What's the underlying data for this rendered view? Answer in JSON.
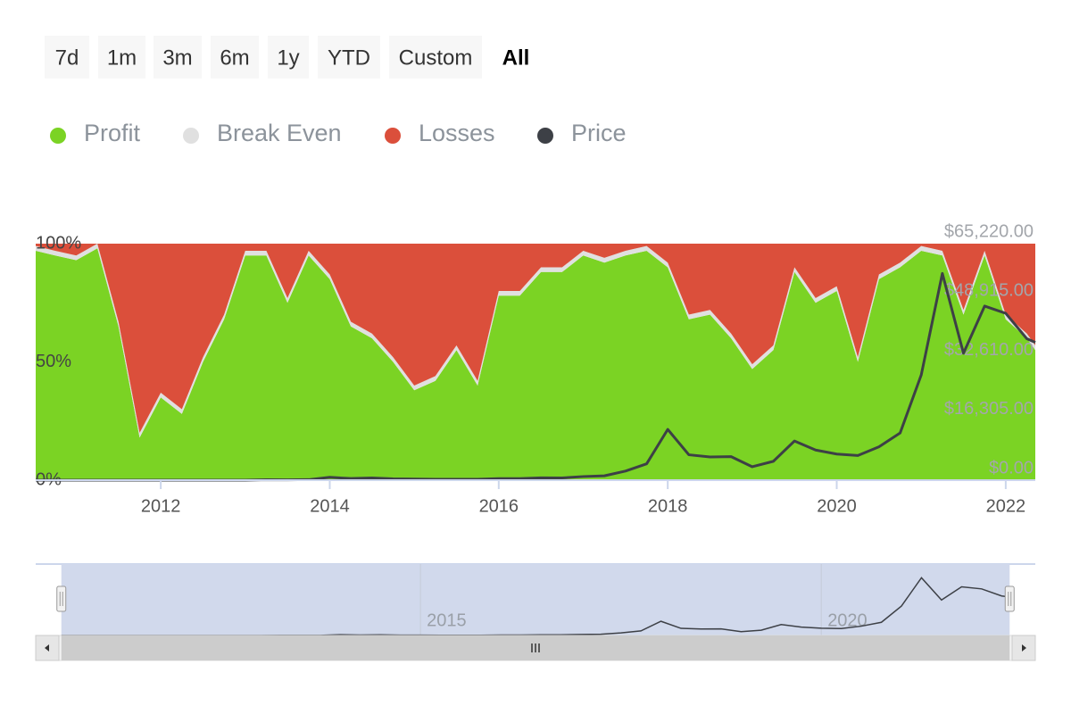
{
  "range_selector": {
    "buttons": [
      "7d",
      "1m",
      "3m",
      "6m",
      "1y",
      "YTD",
      "Custom",
      "All"
    ],
    "selected": "All"
  },
  "chart_data": {
    "type": "stacked-area-line",
    "x": [
      2010.52,
      2010.75,
      2011.0,
      2011.25,
      2011.5,
      2011.75,
      2012.0,
      2012.25,
      2012.5,
      2012.75,
      2013.0,
      2013.25,
      2013.5,
      2013.75,
      2014.0,
      2014.25,
      2014.5,
      2014.75,
      2015.0,
      2015.25,
      2015.5,
      2015.75,
      2016.0,
      2016.25,
      2016.5,
      2016.75,
      2017.0,
      2017.25,
      2017.5,
      2017.75,
      2018.0,
      2018.25,
      2018.5,
      2018.75,
      2019.0,
      2019.25,
      2019.5,
      2019.75,
      2020.0,
      2020.25,
      2020.5,
      2020.75,
      2021.0,
      2021.25,
      2021.5,
      2021.75,
      2022.0,
      2022.25,
      2022.35
    ],
    "series": [
      {
        "name": "Profit",
        "color": "#7bd324",
        "values": [
          97,
          95,
          93,
          98,
          65,
          18,
          35,
          28,
          50,
          68,
          95,
          95,
          75,
          95,
          85,
          65,
          60,
          50,
          38,
          42,
          55,
          40,
          78,
          78,
          88,
          88,
          95,
          92,
          95,
          97,
          90,
          68,
          70,
          60,
          47,
          55,
          88,
          75,
          80,
          50,
          85,
          90,
          97,
          95,
          70,
          95,
          68,
          60,
          55
        ]
      },
      {
        "name": "Break Even",
        "color": "#e0e0e0",
        "values": [
          2,
          2,
          2,
          2,
          2,
          2,
          2,
          2,
          2,
          2,
          2,
          2,
          2,
          2,
          2,
          2,
          2,
          2,
          2,
          2,
          2,
          2,
          2,
          2,
          2,
          2,
          2,
          2,
          2,
          2,
          2,
          2,
          2,
          2,
          2,
          2,
          2,
          2,
          2,
          2,
          2,
          2,
          2,
          2,
          2,
          2,
          2,
          2,
          2
        ]
      },
      {
        "name": "Losses",
        "color": "#db4f3b",
        "values": [
          1,
          3,
          5,
          0,
          33,
          80,
          63,
          70,
          48,
          30,
          3,
          3,
          23,
          3,
          13,
          33,
          38,
          48,
          60,
          56,
          43,
          58,
          20,
          20,
          10,
          10,
          3,
          6,
          3,
          1,
          8,
          30,
          28,
          38,
          51,
          43,
          10,
          23,
          18,
          48,
          13,
          8,
          1,
          3,
          28,
          3,
          30,
          38,
          43
        ]
      },
      {
        "name": "Price",
        "color": "#3d4046",
        "axis": "y2",
        "values": [
          0.1,
          0.2,
          0.3,
          0.8,
          15,
          4,
          5,
          5,
          7,
          12,
          13,
          130,
          90,
          140,
          800,
          450,
          620,
          380,
          310,
          240,
          260,
          240,
          430,
          420,
          650,
          610,
          1000,
          1200,
          2500,
          4500,
          14000,
          7000,
          6400,
          6500,
          3700,
          5200,
          10800,
          8300,
          7200,
          6800,
          9200,
          13000,
          29000,
          57000,
          35000,
          48000,
          46000,
          39000,
          38000
        ]
      }
    ],
    "xlim": [
      2010.52,
      2022.35
    ],
    "xticks": [
      2012,
      2014,
      2016,
      2018,
      2020,
      2022
    ],
    "ylim": [
      0,
      100
    ],
    "yticks": [
      {
        "value": 0,
        "label": "0%"
      },
      {
        "value": 50,
        "label": "50%"
      },
      {
        "value": 100,
        "label": "100%"
      }
    ],
    "y2lim": [
      0,
      65220
    ],
    "y2ticks": [
      {
        "value": 0,
        "label": "$0.00"
      },
      {
        "value": 16305,
        "label": "$16,305.00"
      },
      {
        "value": 32610,
        "label": "$32,610.00"
      },
      {
        "value": 48915,
        "label": "$48,915.00"
      },
      {
        "value": 65220,
        "label": "$65,220.00"
      }
    ],
    "navigator": {
      "xlim": [
        2010.2,
        2022.67
      ],
      "xticks": [
        2015,
        2020
      ]
    }
  }
}
